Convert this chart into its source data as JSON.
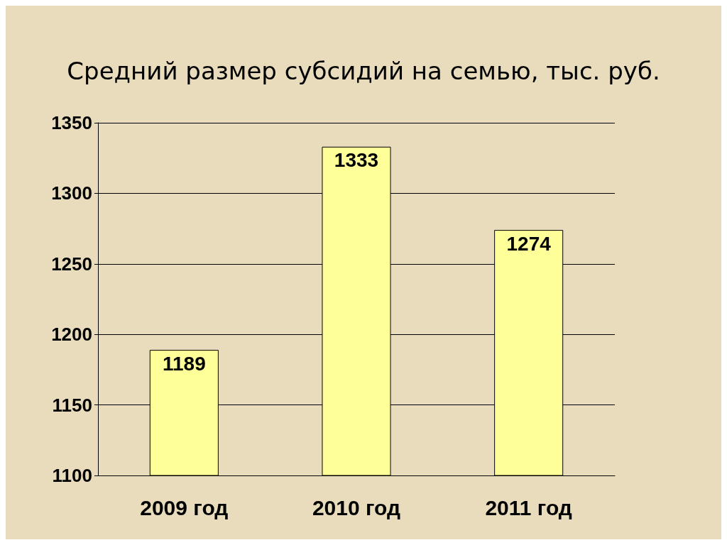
{
  "chart_data": {
    "type": "bar",
    "title": "Средний размер субсидий на семью, тыс. руб.",
    "categories": [
      "2009 год",
      "2010 год",
      "2011 год"
    ],
    "values": [
      1189,
      1333,
      1274
    ],
    "color": "#ffff99",
    "ylim": [
      1100,
      1350
    ],
    "yticks": [
      1100,
      1150,
      1200,
      1250,
      1300,
      1350
    ],
    "grid": "y",
    "data_labels": true
  }
}
